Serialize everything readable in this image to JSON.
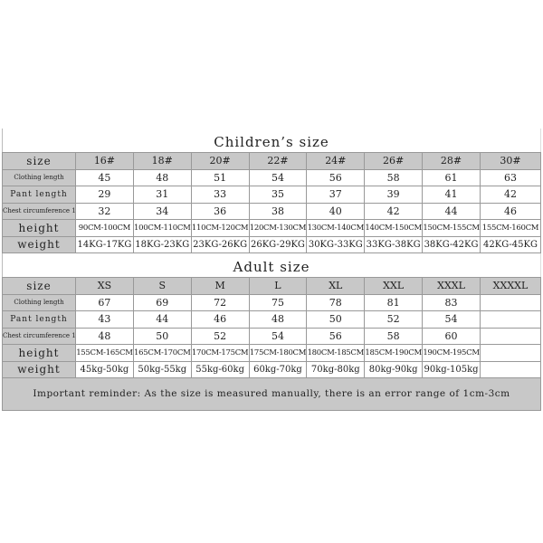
{
  "children": {
    "title": "Children’s size",
    "row_labels": [
      "size",
      "Clothing length",
      "Pant length",
      "Chest circumference 1/2",
      "height",
      "weight"
    ],
    "sizes": [
      "16#",
      "18#",
      "20#",
      "22#",
      "24#",
      "26#",
      "28#",
      "30#"
    ],
    "clothing_length": [
      "45",
      "48",
      "51",
      "54",
      "56",
      "58",
      "61",
      "63"
    ],
    "pant_length": [
      "29",
      "31",
      "33",
      "35",
      "37",
      "39",
      "41",
      "42"
    ],
    "chest": [
      "32",
      "34",
      "36",
      "38",
      "40",
      "42",
      "44",
      "46"
    ],
    "height": [
      "90CM-100CM",
      "100CM-110CM",
      "110CM-120CM",
      "120CM-130CM",
      "130CM-140CM",
      "140CM-150CM",
      "150CM-155CM",
      "155CM-160CM"
    ],
    "weight": [
      "14KG-17KG",
      "18KG-23KG",
      "23KG-26KG",
      "26KG-29KG",
      "30KG-33KG",
      "33KG-38KG",
      "38KG-42KG",
      "42KG-45KG"
    ]
  },
  "adult": {
    "title": "Adult size",
    "row_labels": [
      "size",
      "Clothing length",
      "Pant length",
      "Chest circumference 1/2",
      "height",
      "weight"
    ],
    "sizes": [
      "XS",
      "S",
      "M",
      "L",
      "XL",
      "XXL",
      "XXXL",
      "XXXXL"
    ],
    "clothing_length": [
      "67",
      "69",
      "72",
      "75",
      "78",
      "81",
      "83",
      ""
    ],
    "pant_length": [
      "43",
      "44",
      "46",
      "48",
      "50",
      "52",
      "54",
      ""
    ],
    "chest": [
      "48",
      "50",
      "52",
      "54",
      "56",
      "58",
      "60",
      ""
    ],
    "height": [
      "155CM-165CM",
      "165CM-170CM",
      "170CM-175CM",
      "175CM-180CM",
      "180CM-185CM",
      "185CM-190CM",
      "190CM-195CM",
      ""
    ],
    "weight": [
      "45kg-50kg",
      "50kg-55kg",
      "55kg-60kg",
      "60kg-70kg",
      "70kg-80kg",
      "80kg-90kg",
      "90kg-105kg",
      ""
    ]
  },
  "reminder": "Important reminder: As the size is measured manually, there is an error range of 1cm-3cm",
  "colors": {
    "header_bg": "#c8c8c8",
    "border": "#999999"
  }
}
